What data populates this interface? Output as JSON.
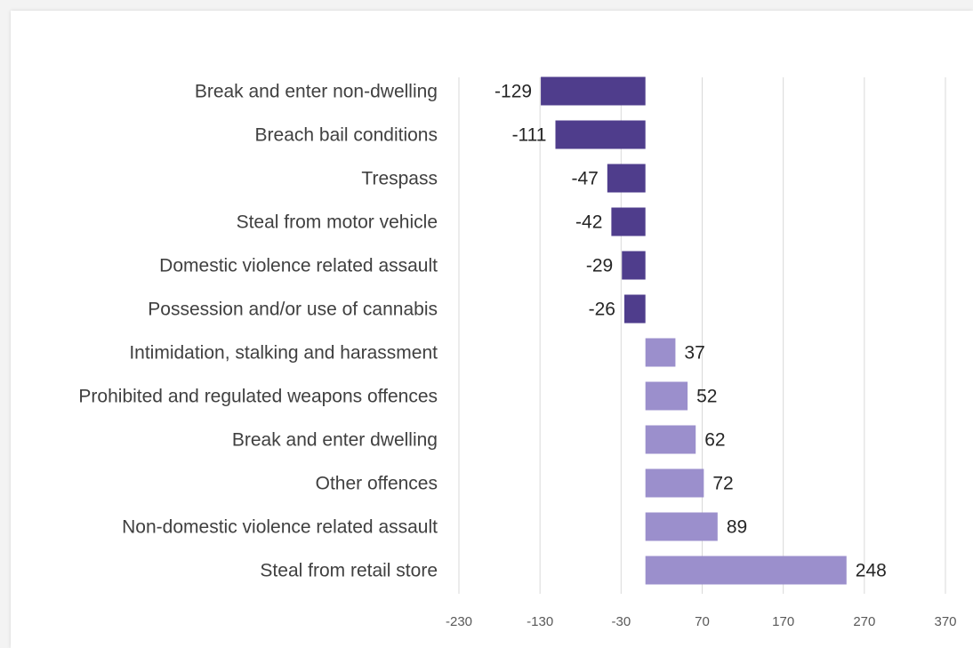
{
  "chart_data": {
    "type": "bar",
    "orientation": "horizontal",
    "title": "",
    "xlabel": "",
    "ylabel": "",
    "categories": [
      "Break and enter non-dwelling",
      "Breach bail conditions",
      "Trespass",
      "Steal from motor vehicle",
      "Domestic violence related assault",
      "Possession and/or use of cannabis",
      "Intimidation, stalking and harassment",
      "Prohibited and regulated weapons offences",
      "Break and enter dwelling",
      "Other offences",
      "Non-domestic violence related assault",
      "Steal from retail store"
    ],
    "values": [
      -129,
      -111,
      -47,
      -42,
      -29,
      -26,
      37,
      52,
      62,
      72,
      89,
      248
    ],
    "xlim": [
      -230,
      370
    ],
    "x_ticks": [
      -230,
      -130,
      -30,
      70,
      170,
      270,
      370
    ],
    "grid": "vertical",
    "legend": "none",
    "colors": {
      "negative": "#4f3d8c",
      "positive": "#9b8fcc",
      "grid": "#d9d9d9"
    }
  }
}
